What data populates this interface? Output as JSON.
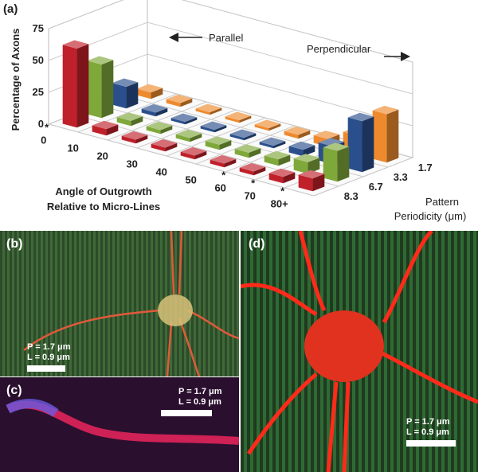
{
  "chart_data": {
    "type": "bar3d",
    "panel_label": "(a)",
    "ylabel": "Percentage of Axons",
    "xlabel": [
      "Angle of Outgrowth",
      "Relative to Micro-Lines"
    ],
    "zlabel": [
      "Pattern",
      "Periodicity (μm)"
    ],
    "categories": [
      "0",
      "10",
      "20",
      "30",
      "40",
      "50",
      "60",
      "70",
      "80+"
    ],
    "asterisks": [
      "*",
      null,
      null,
      null,
      null,
      null,
      "*",
      "*",
      "*"
    ],
    "series": [
      {
        "name": "8.3",
        "color": "#c0202a",
        "values": [
          62,
          5,
          3,
          3,
          3,
          3,
          3,
          5,
          10
        ]
      },
      {
        "name": "6.7",
        "color": "#7fa83a",
        "values": [
          42,
          4,
          3,
          3,
          4,
          4,
          5,
          9,
          24
        ]
      },
      {
        "name": "3.3",
        "color": "#2a4f8c",
        "values": [
          17,
          3,
          2,
          2,
          2,
          2,
          5,
          14,
          40
        ]
      },
      {
        "name": "1.7",
        "color": "#ee8a2e",
        "values": [
          5,
          3,
          2,
          2,
          2,
          3,
          6,
          15,
          38
        ]
      }
    ],
    "ylim": [
      0,
      75
    ],
    "yticks": [
      0,
      25,
      50,
      75
    ],
    "grid": true,
    "annotations": [
      "Parallel",
      "Perpendicular"
    ]
  },
  "panels": [
    {
      "label": "(b)",
      "scale": [
        "P = 1.7 μm",
        "L = 0.9 μm"
      ]
    },
    {
      "label": "(c)",
      "scale": [
        "P = 1.7 μm",
        "L = 0.9 μm"
      ]
    },
    {
      "label": "(d)",
      "scale": [
        "P = 1.7 μm",
        "L = 0.9 μm"
      ]
    }
  ]
}
